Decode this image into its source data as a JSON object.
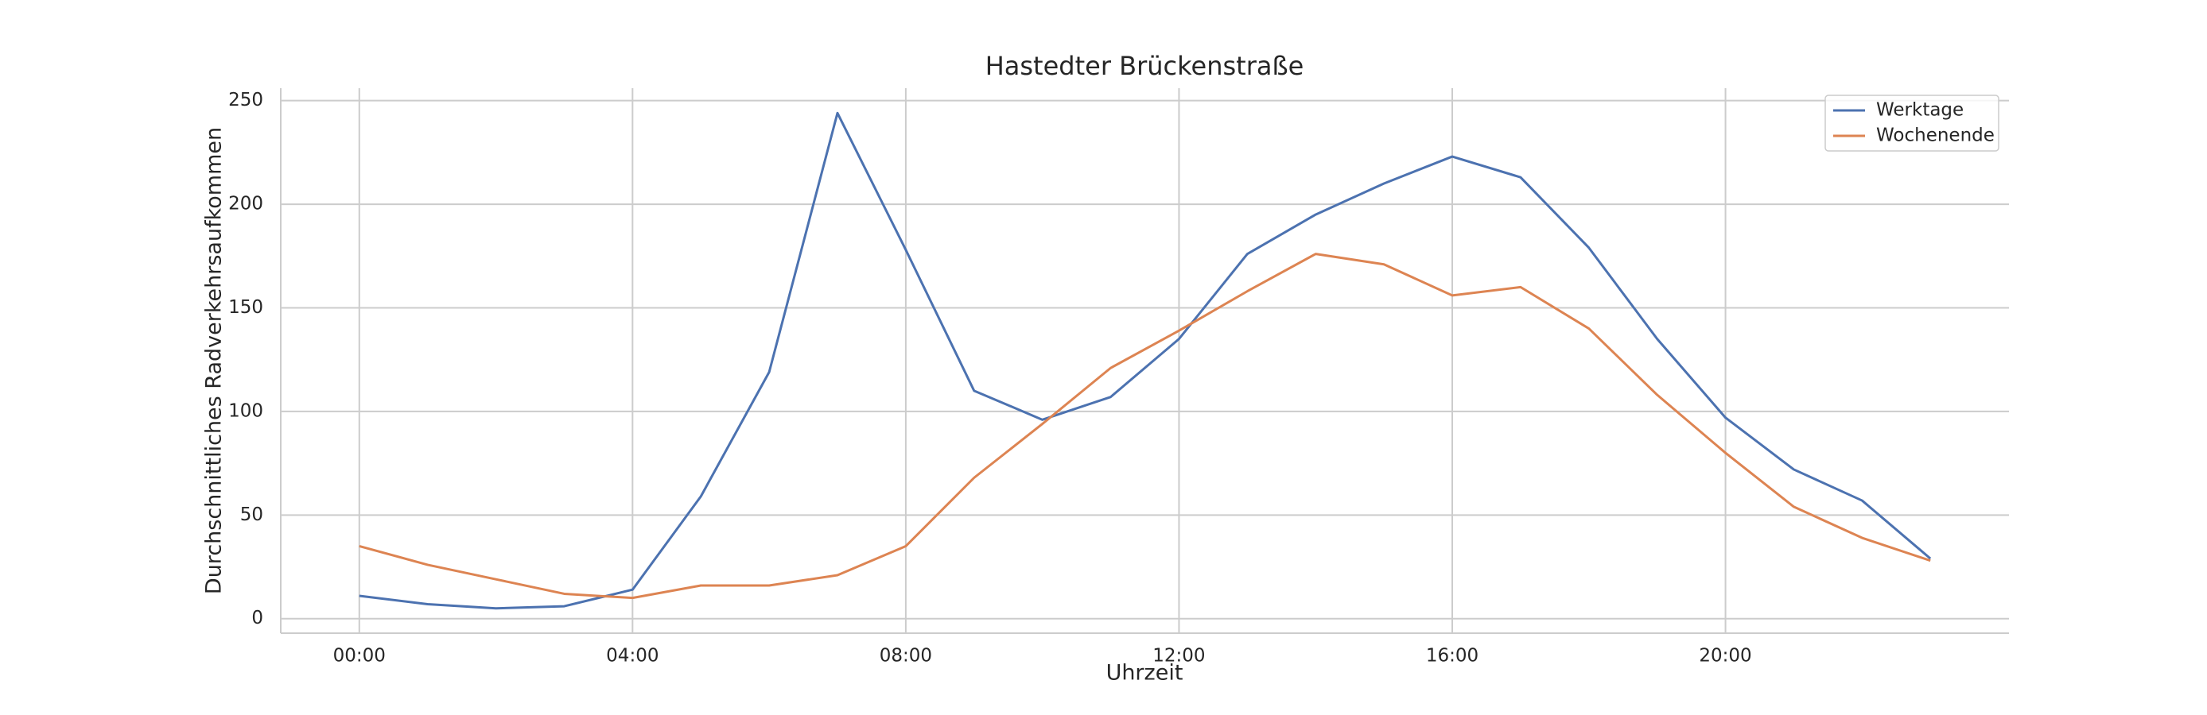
{
  "chart_data": {
    "type": "line",
    "title": "Hastedter Brückenstraße",
    "x_label": "Uhrzeit",
    "y_label": "Durchschnittliches Radverkehrsaufkommen",
    "x": [
      0,
      1,
      2,
      3,
      4,
      5,
      6,
      7,
      8,
      9,
      10,
      11,
      12,
      13,
      14,
      15,
      16,
      17,
      18,
      19,
      20,
      21,
      22,
      23
    ],
    "series": [
      {
        "name": "Werktage",
        "color": "#4c72b0",
        "values": [
          11,
          7,
          5,
          6,
          14,
          59,
          119,
          244,
          178,
          110,
          96,
          107,
          135,
          176,
          195,
          210,
          223,
          213,
          179,
          135,
          97,
          72,
          57,
          29
        ]
      },
      {
        "name": "Wochenende",
        "color": "#dd8452",
        "values": [
          35,
          26,
          19,
          12,
          10,
          16,
          16,
          21,
          35,
          68,
          94,
          121,
          139,
          158,
          176,
          171,
          156,
          160,
          140,
          108,
          80,
          54,
          39,
          28
        ]
      }
    ],
    "xlim": [
      -1.15,
      24.15
    ],
    "xticks": [
      {
        "value": 0,
        "label": "00:00"
      },
      {
        "value": 4,
        "label": "04:00"
      },
      {
        "value": 8,
        "label": "08:00"
      },
      {
        "value": 12,
        "label": "12:00"
      },
      {
        "value": 16,
        "label": "16:00"
      },
      {
        "value": 20,
        "label": "20:00"
      }
    ],
    "ylim": [
      -7,
      256
    ],
    "yticks": [
      0,
      50,
      100,
      150,
      200,
      250
    ],
    "grid": true,
    "legend": "upper right"
  }
}
